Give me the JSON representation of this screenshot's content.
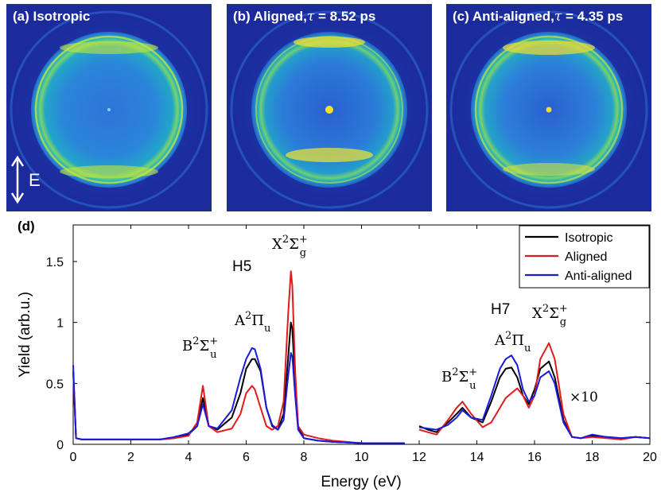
{
  "panels": [
    {
      "label": "(a) Isotropic",
      "tau_symbol": "",
      "tau_value": ""
    },
    {
      "label": "(b) Aligned,",
      "tau_symbol": "τ",
      "tau_value": " = 8.52 ps"
    },
    {
      "label": "(c) Anti-aligned,",
      "tau_symbol": "τ",
      "tau_value": " = 4.35 ps"
    }
  ],
  "polarization_label": "E",
  "colors": {
    "background": "#1b2b9c",
    "isotropic": "#000000",
    "aligned": "#e31a1c",
    "anti_aligned": "#1a1adb"
  },
  "chart_data": {
    "type": "line",
    "panel_label": "(d)",
    "xlabel": "Energy (eV)",
    "ylabel": "Yield (arb.u.)",
    "xlim": [
      0,
      20
    ],
    "ylim": [
      0,
      1.8
    ],
    "xticks": [
      0,
      2,
      4,
      6,
      8,
      10,
      12,
      14,
      16,
      18,
      20
    ],
    "yticks": [
      0,
      0.5,
      1,
      1.5
    ],
    "ytick_labels": [
      "0",
      "0.5",
      "1",
      "1.5"
    ],
    "legend": {
      "position": "top-right",
      "entries": [
        "Isotropic",
        "Aligned",
        "Anti-aligned"
      ]
    },
    "series": [
      {
        "name": "Isotropic",
        "color": "#000000",
        "segment1": {
          "x": [
            0,
            0.1,
            0.3,
            1,
            2,
            3,
            3.5,
            4,
            4.3,
            4.5,
            4.7,
            5,
            5.5,
            5.8,
            6.0,
            6.2,
            6.3,
            6.5,
            6.7,
            6.9,
            7.1,
            7.3,
            7.45,
            7.55,
            7.6,
            7.7,
            7.8,
            8.0,
            8.5,
            9,
            10,
            11.5
          ],
          "y": [
            0.6,
            0.05,
            0.04,
            0.04,
            0.04,
            0.04,
            0.05,
            0.08,
            0.15,
            0.38,
            0.15,
            0.12,
            0.22,
            0.42,
            0.62,
            0.7,
            0.7,
            0.6,
            0.3,
            0.15,
            0.12,
            0.25,
            0.7,
            1.0,
            0.95,
            0.5,
            0.15,
            0.05,
            0.03,
            0.02,
            0.01,
            0.01
          ]
        },
        "segment2": {
          "x": [
            12,
            12.3,
            12.6,
            13,
            13.3,
            13.5,
            13.8,
            14.2,
            14.5,
            14.8,
            15.0,
            15.2,
            15.4,
            15.6,
            15.8,
            16.0,
            16.2,
            16.5,
            16.7,
            17.0,
            17.3,
            17.6,
            18,
            18.5,
            19,
            19.5,
            20
          ],
          "y": [
            0.15,
            0.12,
            0.1,
            0.18,
            0.25,
            0.3,
            0.22,
            0.18,
            0.35,
            0.55,
            0.62,
            0.63,
            0.55,
            0.4,
            0.33,
            0.45,
            0.62,
            0.68,
            0.55,
            0.2,
            0.06,
            0.05,
            0.07,
            0.06,
            0.05,
            0.06,
            0.05
          ]
        }
      },
      {
        "name": "Aligned",
        "color": "#e31a1c",
        "segment1": {
          "x": [
            0,
            0.1,
            0.3,
            1,
            2,
            3,
            3.5,
            4,
            4.3,
            4.5,
            4.7,
            5,
            5.5,
            5.8,
            6.0,
            6.2,
            6.3,
            6.5,
            6.7,
            6.9,
            7.1,
            7.3,
            7.45,
            7.55,
            7.6,
            7.7,
            7.8,
            8.0,
            8.5,
            9,
            10,
            11.5
          ],
          "y": [
            0.6,
            0.05,
            0.04,
            0.04,
            0.04,
            0.04,
            0.05,
            0.07,
            0.18,
            0.48,
            0.15,
            0.1,
            0.13,
            0.25,
            0.42,
            0.48,
            0.45,
            0.3,
            0.15,
            0.12,
            0.15,
            0.35,
            1.05,
            1.42,
            1.3,
            0.6,
            0.15,
            0.08,
            0.05,
            0.03,
            0.01,
            0.01
          ]
        },
        "segment2": {
          "x": [
            12,
            12.3,
            12.6,
            13,
            13.3,
            13.5,
            13.8,
            14.2,
            14.5,
            14.8,
            15.0,
            15.2,
            15.4,
            15.6,
            15.8,
            16.0,
            16.2,
            16.5,
            16.7,
            17.0,
            17.3,
            17.6,
            18,
            18.5,
            19,
            19.5,
            20
          ],
          "y": [
            0.12,
            0.1,
            0.08,
            0.2,
            0.3,
            0.35,
            0.25,
            0.14,
            0.18,
            0.3,
            0.38,
            0.42,
            0.46,
            0.4,
            0.3,
            0.4,
            0.7,
            0.83,
            0.7,
            0.25,
            0.06,
            0.05,
            0.06,
            0.05,
            0.04,
            0.06,
            0.05
          ]
        }
      },
      {
        "name": "Anti-aligned",
        "color": "#1a1adb",
        "segment1": {
          "x": [
            0,
            0.1,
            0.3,
            1,
            2,
            3,
            3.5,
            4,
            4.3,
            4.5,
            4.7,
            5,
            5.5,
            5.8,
            6.0,
            6.2,
            6.3,
            6.5,
            6.7,
            6.9,
            7.1,
            7.3,
            7.45,
            7.55,
            7.6,
            7.7,
            7.8,
            8.0,
            8.5,
            9,
            10,
            11.5
          ],
          "y": [
            0.65,
            0.05,
            0.04,
            0.04,
            0.04,
            0.04,
            0.06,
            0.09,
            0.15,
            0.33,
            0.15,
            0.13,
            0.28,
            0.55,
            0.7,
            0.79,
            0.78,
            0.62,
            0.3,
            0.16,
            0.12,
            0.2,
            0.55,
            0.75,
            0.72,
            0.4,
            0.12,
            0.05,
            0.03,
            0.02,
            0.01,
            0.01
          ]
        },
        "segment2": {
          "x": [
            12,
            12.3,
            12.6,
            13,
            13.3,
            13.5,
            13.8,
            14.2,
            14.5,
            14.8,
            15.0,
            15.2,
            15.4,
            15.6,
            15.8,
            16.0,
            16.2,
            16.5,
            16.7,
            17.0,
            17.3,
            17.6,
            18,
            18.5,
            19,
            19.5,
            20
          ],
          "y": [
            0.14,
            0.13,
            0.12,
            0.16,
            0.22,
            0.28,
            0.22,
            0.2,
            0.4,
            0.62,
            0.7,
            0.73,
            0.65,
            0.45,
            0.35,
            0.4,
            0.55,
            0.6,
            0.5,
            0.18,
            0.06,
            0.05,
            0.08,
            0.06,
            0.05,
            0.06,
            0.05
          ]
        }
      }
    ],
    "annotations": {
      "h5": "H5",
      "h7": "H7",
      "b_state": {
        "base": "B",
        "sup1": "2",
        "sym": "Σ",
        "sup2": "+",
        "sub": "u"
      },
      "a_state": {
        "base": "A",
        "sup1": "2",
        "sym": "Π",
        "sub": "u"
      },
      "x_state": {
        "base": "X",
        "sup1": "2",
        "sym": "Σ",
        "sup2": "+",
        "sub": "g"
      },
      "times10": "×10"
    }
  }
}
